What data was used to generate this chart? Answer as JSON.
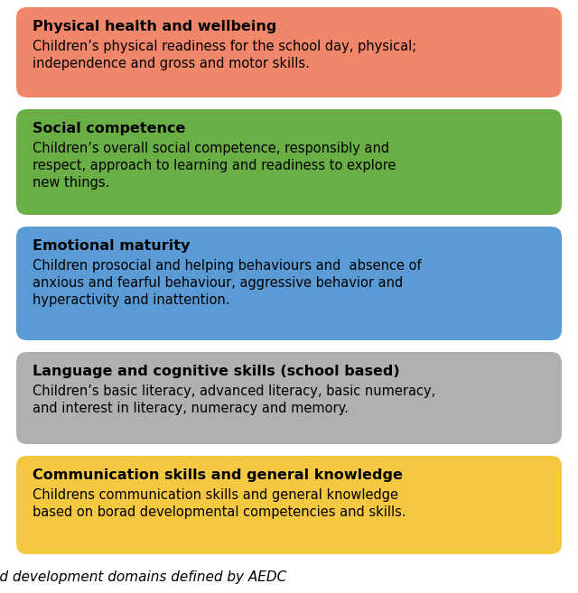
{
  "boxes": [
    {
      "color": "#F0876A",
      "title": "Physical health and wellbeing",
      "body": "Children’s physical readiness for the school day, physical;\nindependence and gross and motor skills."
    },
    {
      "color": "#6AAF45",
      "title": "Social competence",
      "body": "Children’s overall social competence, responsibly and\nrespect, approach to learning and readiness to explore\nnew things."
    },
    {
      "color": "#5B9BD5",
      "title": "Emotional maturity",
      "body": "Children prosocial and helping behaviours and  absence of\nanxious and fearful behaviour, aggressive behavior and\nhyperactivity and inattention."
    },
    {
      "color": "#B0B0B0",
      "title": "Language and cognitive skills (school based)",
      "body": "Children’s basic literacy, advanced literacy, basic numeracy,\nand interest in literacy, numeracy and memory."
    },
    {
      "color": "#F5C842",
      "title": "Communication skills and general knowledge",
      "body": "Childrens communication skills and general knowledge\nbased on borad developmental competencies and skills."
    }
  ],
  "caption": "od development domains defined by AEDC",
  "background_color": "#ffffff",
  "box_text_color": "#000000",
  "title_fontsize": 11.5,
  "body_fontsize": 10.5,
  "caption_fontsize": 11
}
